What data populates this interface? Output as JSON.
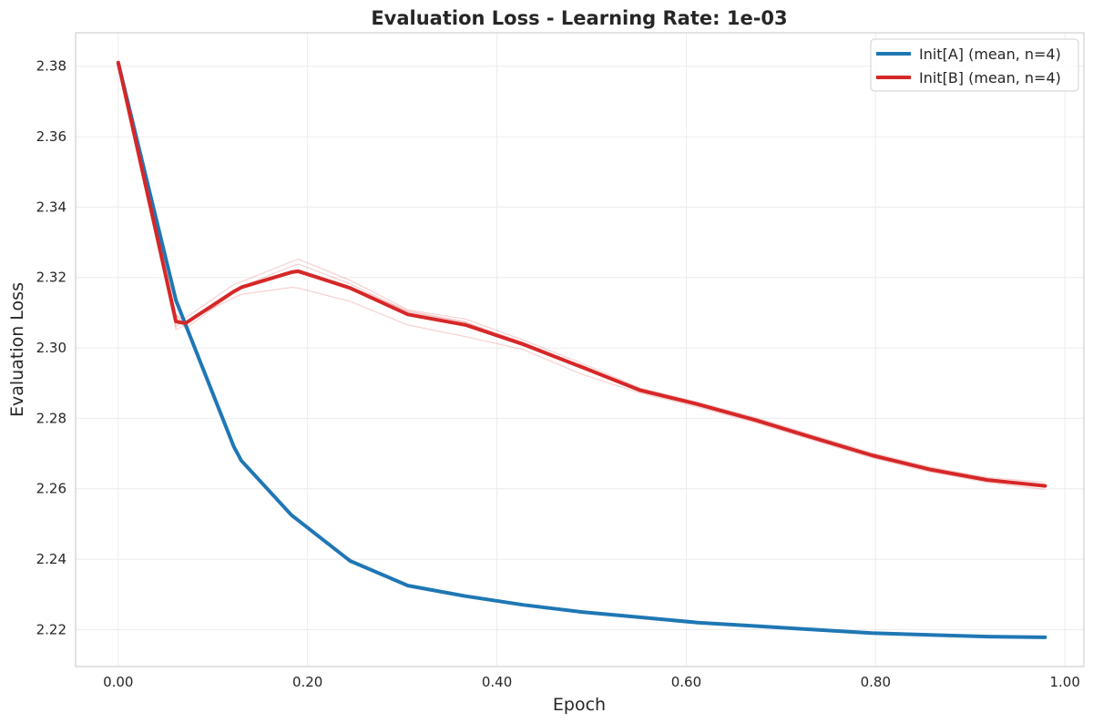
{
  "chart_data": {
    "type": "line",
    "title": "Evaluation Loss - Learning Rate: 1e-03",
    "xlabel": "Epoch",
    "ylabel": "Evaluation Loss",
    "xlim": [
      -0.045,
      1.02
    ],
    "ylim": [
      2.2095,
      2.3895
    ],
    "xticks": [
      0.0,
      0.2,
      0.4,
      0.6,
      0.8,
      1.0
    ],
    "xtick_labels": [
      "0.00",
      "0.20",
      "0.40",
      "0.60",
      "0.80",
      "1.00"
    ],
    "yticks": [
      2.22,
      2.24,
      2.26,
      2.28,
      2.3,
      2.32,
      2.34,
      2.36,
      2.38
    ],
    "ytick_labels": [
      "2.22",
      "2.24",
      "2.26",
      "2.28",
      "2.30",
      "2.32",
      "2.34",
      "2.36",
      "2.38"
    ],
    "grid": true,
    "legend_position": "top-right",
    "series": [
      {
        "name": "Init[A] (mean, n=4)",
        "color": "#1f77b4",
        "x": [
          0.0,
          0.061,
          0.122,
          0.13,
          0.183,
          0.245,
          0.306,
          0.367,
          0.428,
          0.49,
          0.551,
          0.612,
          0.673,
          0.734,
          0.796,
          0.857,
          0.918,
          0.979
        ],
        "y": [
          2.381,
          2.3135,
          2.272,
          2.268,
          2.2525,
          2.2395,
          2.2325,
          2.2295,
          2.227,
          2.225,
          2.2235,
          2.222,
          2.221,
          2.22,
          2.219,
          2.2185,
          2.218,
          2.2178
        ],
        "runs": [
          [
            2.381,
            2.3138,
            2.2718,
            2.2682,
            2.2526,
            2.2396,
            2.2326,
            2.2296,
            2.2271,
            2.2251,
            2.2236,
            2.2221,
            2.2211,
            2.2201,
            2.2191,
            2.2186,
            2.2181,
            2.2179
          ],
          [
            2.381,
            2.3132,
            2.2722,
            2.2678,
            2.2524,
            2.2394,
            2.2324,
            2.2294,
            2.2269,
            2.2249,
            2.2234,
            2.2219,
            2.2209,
            2.2199,
            2.2189,
            2.2184,
            2.2179,
            2.2177
          ],
          [
            2.381,
            2.3136,
            2.2719,
            2.2681,
            2.2525,
            2.2395,
            2.2325,
            2.2295,
            2.227,
            2.225,
            2.2235,
            2.222,
            2.221,
            2.22,
            2.219,
            2.2185,
            2.218,
            2.2178
          ],
          [
            2.381,
            2.3134,
            2.2721,
            2.2679,
            2.2525,
            2.2395,
            2.2325,
            2.2295,
            2.227,
            2.225,
            2.2235,
            2.222,
            2.221,
            2.22,
            2.219,
            2.2185,
            2.218,
            2.2178
          ]
        ]
      },
      {
        "name": "Init[B] (mean, n=4)",
        "color": "#d62728",
        "x": [
          0.0,
          0.061,
          0.071,
          0.122,
          0.13,
          0.183,
          0.19,
          0.245,
          0.306,
          0.367,
          0.428,
          0.49,
          0.551,
          0.612,
          0.673,
          0.734,
          0.796,
          0.857,
          0.918,
          0.979
        ],
        "y": [
          2.381,
          2.3075,
          2.307,
          2.316,
          2.3172,
          2.3215,
          2.3218,
          2.317,
          2.3095,
          2.3065,
          2.301,
          2.2945,
          2.288,
          2.284,
          2.2795,
          2.2745,
          2.2695,
          2.2655,
          2.2625,
          2.2608
        ],
        "runs": [
          [
            2.381,
            2.306,
            2.3085,
            2.318,
            2.3188,
            2.3245,
            2.3252,
            2.3192,
            2.3108,
            2.3082,
            2.3022,
            2.2956,
            2.2886,
            2.2846,
            2.2802,
            2.2752,
            2.2702,
            2.2662,
            2.2632,
            2.2618
          ],
          [
            2.381,
            2.3052,
            2.3065,
            2.3162,
            2.3174,
            2.3232,
            2.3238,
            2.3182,
            2.3102,
            2.3072,
            2.3016,
            2.2948,
            2.2882,
            2.2842,
            2.2798,
            2.2748,
            2.2698,
            2.2658,
            2.2628,
            2.2612
          ],
          [
            2.381,
            2.3092,
            2.3075,
            2.3142,
            2.3152,
            2.3172,
            2.317,
            2.3132,
            2.3065,
            2.3032,
            2.2995,
            2.2925,
            2.2872,
            2.2832,
            2.2788,
            2.2738,
            2.2688,
            2.2648,
            2.2618,
            2.2598
          ],
          [
            2.381,
            2.3096,
            2.3055,
            2.3156,
            2.3174,
            2.3211,
            2.3212,
            2.3174,
            2.3105,
            2.3074,
            2.3007,
            2.2951,
            2.288,
            2.284,
            2.2792,
            2.2742,
            2.2692,
            2.2652,
            2.2622,
            2.2604
          ]
        ]
      }
    ]
  }
}
